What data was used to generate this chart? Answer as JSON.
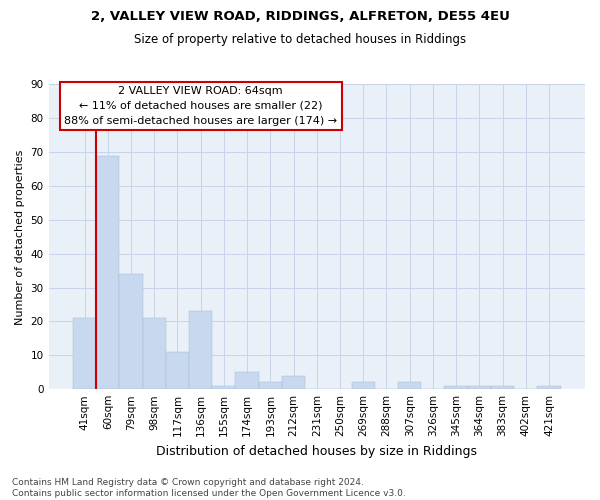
{
  "title1": "2, VALLEY VIEW ROAD, RIDDINGS, ALFRETON, DE55 4EU",
  "title2": "Size of property relative to detached houses in Riddings",
  "xlabel": "Distribution of detached houses by size in Riddings",
  "ylabel": "Number of detached properties",
  "categories": [
    "41sqm",
    "60sqm",
    "79sqm",
    "98sqm",
    "117sqm",
    "136sqm",
    "155sqm",
    "174sqm",
    "193sqm",
    "212sqm",
    "231sqm",
    "250sqm",
    "269sqm",
    "288sqm",
    "307sqm",
    "326sqm",
    "345sqm",
    "364sqm",
    "383sqm",
    "402sqm",
    "421sqm"
  ],
  "values": [
    21,
    69,
    34,
    21,
    11,
    23,
    1,
    5,
    2,
    4,
    0,
    0,
    2,
    0,
    2,
    0,
    1,
    1,
    1,
    0,
    1
  ],
  "bar_color": "#c8d8ee",
  "bar_edgecolor": "#c8d8ee",
  "grid_color": "#c8d4e8",
  "background_color": "#eaf0f8",
  "vline_color": "#cc0000",
  "annotation_text": "2 VALLEY VIEW ROAD: 64sqm\n← 11% of detached houses are smaller (22)\n88% of semi-detached houses are larger (174) →",
  "annotation_box_facecolor": "#ffffff",
  "annotation_box_edgecolor": "#cc0000",
  "ylim": [
    0,
    90
  ],
  "yticks": [
    0,
    10,
    20,
    30,
    40,
    50,
    60,
    70,
    80,
    90
  ],
  "footnote": "Contains HM Land Registry data © Crown copyright and database right 2024.\nContains public sector information licensed under the Open Government Licence v3.0.",
  "title1_fontsize": 9.5,
  "title2_fontsize": 8.5,
  "xlabel_fontsize": 9,
  "ylabel_fontsize": 8,
  "tick_fontsize": 7.5,
  "annotation_fontsize": 8,
  "footnote_fontsize": 6.5
}
